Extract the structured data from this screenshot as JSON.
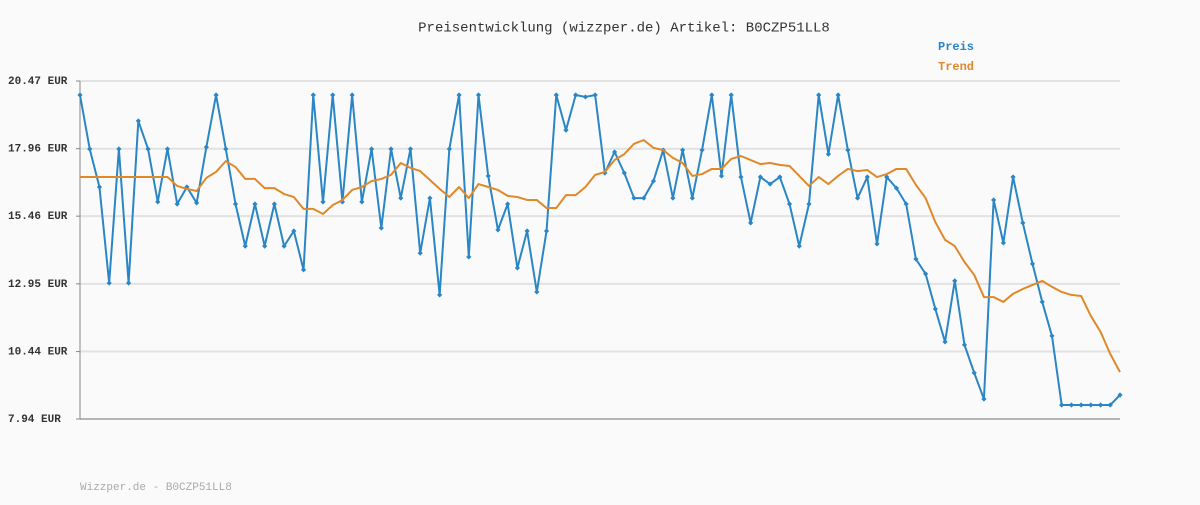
{
  "chart_data": {
    "type": "line",
    "title": "Preisentwicklung (wizzper.de) Artikel: B0CZP51LL8",
    "footer": "Wizzper.de - B0CZP51LL8",
    "legend": "top-right",
    "grid": true,
    "ylim": [
      7.94,
      20.47
    ],
    "yticks": [
      {
        "value": 7.94,
        "label": "7.94 EUR"
      },
      {
        "value": 10.44,
        "label": "10.44 EUR"
      },
      {
        "value": 12.95,
        "label": "12.95 EUR"
      },
      {
        "value": 15.46,
        "label": "15.46 EUR"
      },
      {
        "value": 17.96,
        "label": "17.96 EUR"
      },
      {
        "value": 20.47,
        "label": "20.47 EUR"
      }
    ],
    "categories": [
      null,
      null,
      null,
      null,
      null,
      null,
      null,
      null,
      null,
      null,
      null,
      null,
      null,
      null,
      null,
      null,
      null,
      null,
      null,
      null,
      null,
      null,
      null,
      null,
      null,
      null,
      null,
      null,
      null,
      null,
      null,
      null,
      null,
      null,
      null,
      null,
      null,
      null,
      null,
      null,
      null,
      null,
      null,
      null,
      null,
      null,
      null,
      null,
      null,
      null,
      null,
      null,
      null,
      null,
      null,
      null,
      null,
      null,
      null,
      null,
      null,
      null,
      null,
      null,
      null,
      null,
      null,
      null,
      null,
      null,
      null,
      null,
      null,
      null,
      null,
      null,
      null,
      null,
      null,
      null,
      null,
      null,
      null,
      null,
      null,
      null,
      null,
      null,
      null,
      null,
      null,
      null,
      null,
      null,
      null,
      null,
      null,
      null,
      null,
      null,
      null,
      null,
      null,
      null,
      null,
      null,
      null,
      null
    ],
    "series": [
      {
        "name": "Preis",
        "color": "#2a86c4",
        "markers": true,
        "values": [
          19.95,
          17.95,
          16.54,
          12.98,
          17.95,
          12.98,
          18.99,
          17.95,
          15.99,
          17.95,
          15.91,
          16.54,
          15.95,
          18.02,
          19.95,
          17.95,
          15.91,
          14.35,
          15.91,
          14.35,
          15.91,
          14.35,
          14.91,
          13.47,
          19.95,
          15.99,
          19.95,
          15.99,
          19.95,
          15.99,
          17.95,
          15.02,
          17.95,
          16.13,
          17.95,
          14.09,
          16.13,
          12.54,
          17.95,
          19.95,
          13.95,
          19.95,
          16.95,
          14.95,
          15.91,
          13.54,
          14.91,
          12.65,
          14.91,
          19.95,
          18.65,
          19.95,
          19.88,
          19.95,
          17.06,
          17.84,
          17.06,
          16.13,
          16.13,
          16.76,
          17.91,
          16.13,
          17.91,
          16.13,
          17.91,
          19.95,
          16.95,
          19.95,
          16.91,
          15.21,
          16.91,
          16.65,
          16.91,
          15.91,
          14.35,
          15.91,
          19.95,
          17.76,
          19.95,
          17.91,
          16.13,
          16.91,
          14.43,
          16.91,
          16.5,
          15.91,
          13.87,
          13.32,
          12.02,
          10.8,
          13.06,
          10.69,
          9.65,
          8.68,
          16.06,
          14.47,
          16.91,
          15.21,
          13.69,
          12.28,
          11.02,
          8.46,
          8.46,
          8.46,
          8.46,
          8.46,
          8.46,
          8.83
        ]
      },
      {
        "name": "Trend",
        "color": "#e0892a",
        "markers": false,
        "values": [
          16.91,
          16.91,
          16.91,
          16.91,
          16.91,
          16.91,
          16.91,
          16.91,
          16.91,
          16.91,
          16.58,
          16.47,
          16.39,
          16.88,
          17.1,
          17.5,
          17.28,
          16.84,
          16.84,
          16.5,
          16.5,
          16.28,
          16.17,
          15.73,
          15.73,
          15.54,
          15.87,
          16.06,
          16.43,
          16.54,
          16.76,
          16.84,
          16.99,
          17.43,
          17.25,
          17.13,
          16.8,
          16.47,
          16.17,
          16.54,
          16.13,
          16.65,
          16.54,
          16.43,
          16.21,
          16.17,
          16.06,
          16.06,
          15.76,
          15.76,
          16.24,
          16.24,
          16.54,
          16.99,
          17.1,
          17.54,
          17.76,
          18.14,
          18.28,
          17.99,
          17.91,
          17.62,
          17.43,
          16.95,
          17.02,
          17.21,
          17.21,
          17.58,
          17.69,
          17.54,
          17.39,
          17.43,
          17.36,
          17.32,
          16.95,
          16.58,
          16.91,
          16.65,
          16.95,
          17.21,
          17.13,
          17.17,
          16.91,
          17.02,
          17.21,
          17.21,
          16.62,
          16.13,
          15.24,
          14.58,
          14.35,
          13.76,
          13.28,
          12.46,
          12.46,
          12.28,
          12.58,
          12.76,
          12.91,
          13.06,
          12.84,
          12.65,
          12.54,
          12.5,
          11.76,
          11.17,
          10.35,
          9.68
        ]
      }
    ]
  }
}
